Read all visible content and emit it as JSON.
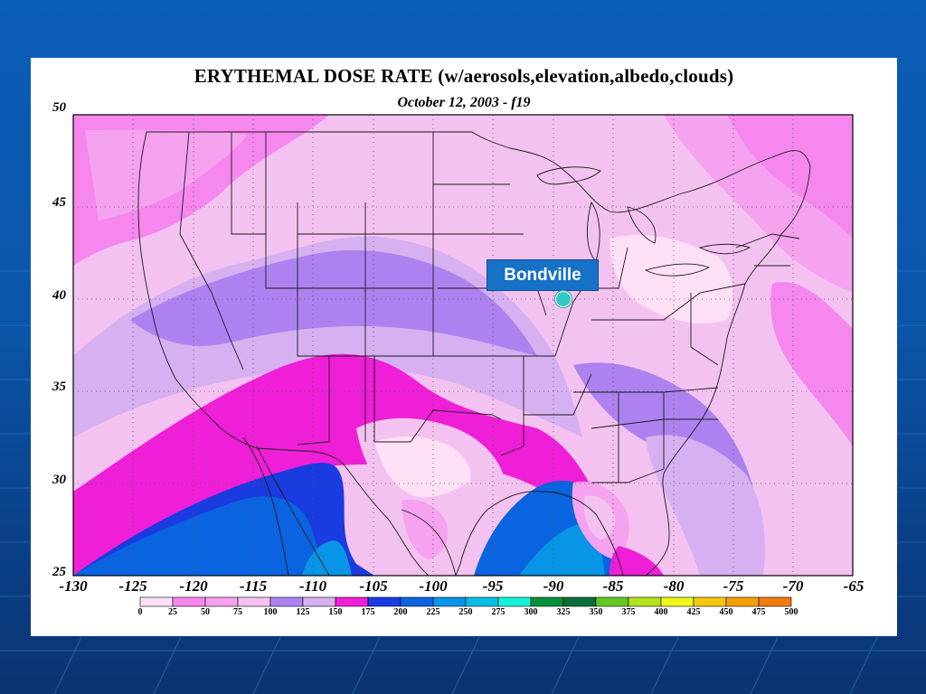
{
  "slide": {
    "title": "ERYTHEMAL DOSE RATE (w/aerosols,elevation,albedo,clouds)",
    "subtitle": "October 12, 2003 - f19"
  },
  "map": {
    "lat_ticks": [
      "50",
      "45",
      "40",
      "35",
      "30",
      "25"
    ],
    "lon_ticks": [
      "-130",
      "-125",
      "-120",
      "-115",
      "-110",
      "-105",
      "-100",
      "-95",
      "-90",
      "-85",
      "-80",
      "-75",
      "-70",
      "-65"
    ],
    "location_marker": {
      "label": "Bondville",
      "color": "#36c8c4"
    }
  },
  "colorbar": {
    "ticks": [
      "0",
      "25",
      "50",
      "75",
      "100",
      "125",
      "150",
      "175",
      "200",
      "225",
      "250",
      "275",
      "300",
      "325",
      "350",
      "375",
      "400",
      "425",
      "450",
      "475",
      "500"
    ],
    "colors": [
      "#fde0f6",
      "#f587ee",
      "#f5a2ef",
      "#f4c2f1",
      "#ad82f0",
      "#d7b0f1",
      "#ef1fd7",
      "#1a3be0",
      "#0a63df",
      "#0895e6",
      "#09bde6",
      "#14f2d8",
      "#078f3c",
      "#0a6e38",
      "#65c723",
      "#b3e31b",
      "#f0f51a",
      "#f5c80f",
      "#f3a00c",
      "#f37a0c"
    ]
  },
  "colors": {
    "slide_background": "#0b56aa",
    "marker_box": "#1671c7"
  }
}
